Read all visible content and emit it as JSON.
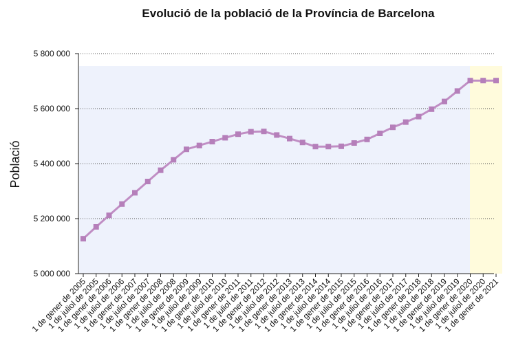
{
  "chart_data": {
    "type": "line",
    "title": "Evolució de la població de la Província de Barcelona",
    "xlabel": "",
    "ylabel": "Població",
    "ylim": [
      5000000,
      5800000
    ],
    "yticks": [
      5000000,
      5200000,
      5400000,
      5600000,
      5800000
    ],
    "ytick_labels": [
      "5 000 000",
      "5 200 000",
      "5 400 000",
      "5 600 000",
      "5 800 000"
    ],
    "grid": "horizontal dotted",
    "categories": [
      "1 de gener de 2005",
      "1 de juliol de 2005",
      "1 de gener de 2006",
      "1 de juliol de 2006",
      "1 de gener de 2007",
      "1 de juliol de 2007",
      "1 de gener de 2008",
      "1 de juliol de 2008",
      "1 de gener de 2009",
      "1 de juliol de 2009",
      "1 de gener de 2010",
      "1 de juliol de 2010",
      "1 de gener de 2011",
      "1 de juliol de 2011",
      "1 de gener de 2012",
      "1 de juliol de 2012",
      "1 de gener de 2013",
      "1 de juliol de 2013",
      "1 de gener de 2014",
      "1 de juliol de 2014",
      "1 de gener de 2015",
      "1 de juliol de 2015",
      "1 de gener de 2016",
      "1 de juliol de 2016",
      "1 de gener de 2017",
      "1 de juliol de 2017",
      "1 de gener de 2018",
      "1 de juliol de 2018",
      "1 de gener de 2019",
      "1 de juliol de 2019",
      "1 de gener de 2020",
      "1 de juliol de 2020",
      "1 de gener de 2021"
    ],
    "series": [
      {
        "values": [
          5127000,
          5170000,
          5212000,
          5253000,
          5294000,
          5335000,
          5376000,
          5414000,
          5452000,
          5466000,
          5480000,
          5494000,
          5507000,
          5516000,
          5517000,
          5504000,
          5491000,
          5477000,
          5462000,
          5462000,
          5463000,
          5475000,
          5488000,
          5510000,
          5532000,
          5551000,
          5571000,
          5598000,
          5626000,
          5664000,
          5702000,
          5702000,
          5702000
        ],
        "color": "#c08ec4"
      }
    ],
    "background_regions": [
      {
        "from": "1 de gener de 2005",
        "to": "1 de gener de 2020",
        "color": "#eef2fc"
      },
      {
        "from": "1 de gener de 2020",
        "to": "1 de gener de 2021",
        "color": "#fffbdc"
      }
    ],
    "colors": {
      "line": "#c08ec4",
      "marker": "#b57fba",
      "region_main": "#eef2fc",
      "region_recent": "#fffbdc"
    }
  }
}
